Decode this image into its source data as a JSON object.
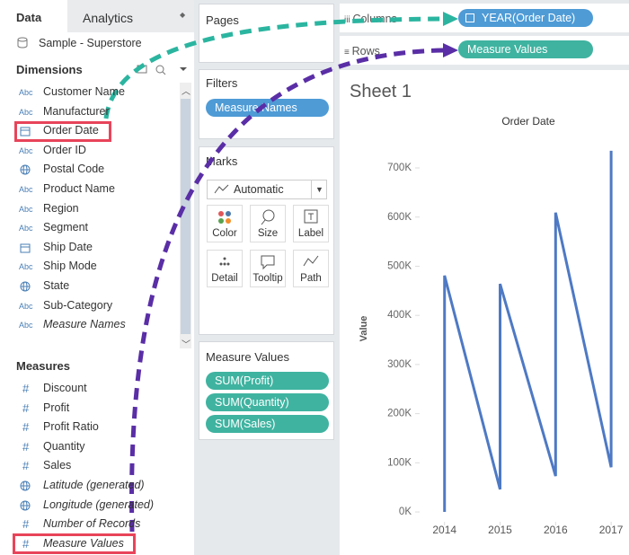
{
  "data_pane": {
    "tabs": [
      "Data",
      "Analytics"
    ],
    "data_source": "Sample - Superstore",
    "dimensions": {
      "title": "Dimensions",
      "items": [
        {
          "icon": "Abc",
          "name": "Customer Name"
        },
        {
          "icon": "Abc",
          "name": "Manufacturer"
        },
        {
          "name": "Order Date"
        },
        {
          "icon": "Abc",
          "name": "Order ID"
        },
        {
          "name": "Postal Code"
        },
        {
          "icon": "Abc",
          "name": "Product Name"
        },
        {
          "icon": "Abc",
          "name": "Region"
        },
        {
          "icon": "Abc",
          "name": "Segment"
        },
        {
          "name": "Ship Date"
        },
        {
          "icon": "Abc",
          "name": "Ship Mode"
        },
        {
          "name": "State"
        },
        {
          "icon": "Abc",
          "name": "Sub-Category"
        },
        {
          "icon": "Abc",
          "name": "Measure Names",
          "italic": true
        }
      ]
    },
    "measures": {
      "title": "Measures",
      "items": [
        {
          "icon": "#",
          "name": "Discount"
        },
        {
          "icon": "#",
          "name": "Profit"
        },
        {
          "icon": "#",
          "name": "Profit Ratio"
        },
        {
          "icon": "#",
          "name": "Quantity"
        },
        {
          "icon": "#",
          "name": "Sales"
        },
        {
          "name": "Latitude (generated)",
          "italic": true
        },
        {
          "name": "Longitude (generated)",
          "italic": true
        },
        {
          "icon": "#",
          "name": "Number of Records",
          "italic": true
        },
        {
          "icon": "#",
          "name": "Measure Values",
          "italic": true
        }
      ]
    }
  },
  "cards": {
    "pages": "Pages",
    "filters": {
      "title": "Filters",
      "pills": [
        "Measure Names"
      ]
    },
    "marks": {
      "title": "Marks",
      "mark_type": "Automatic",
      "buttons": [
        "Color",
        "Size",
        "Label",
        "Detail",
        "Tooltip",
        "Path"
      ]
    },
    "measure_values": {
      "title": "Measure Values",
      "pills": [
        "SUM(Profit)",
        "SUM(Quantity)",
        "SUM(Sales)"
      ]
    }
  },
  "shelves": {
    "columns": {
      "label": "Columns",
      "pill": "YEAR(Order Date)"
    },
    "rows": {
      "label": "Rows",
      "pill": "Measure Values"
    }
  },
  "sheet": {
    "title": "Sheet 1"
  },
  "chart_data": {
    "type": "line",
    "title": "Order Date",
    "y_label": "Value",
    "color": "#4e79c4",
    "x": [
      2014,
      2014,
      2015,
      2015,
      2016,
      2016,
      2017,
      2017
    ],
    "values": [
      0,
      481000,
      46000,
      464000,
      73000,
      609000,
      91000,
      735000
    ],
    "xlim": [
      2013.6,
      2017.16
    ],
    "xticks": [
      2014,
      2015,
      2016,
      2017
    ],
    "ylim": [
      -20000,
      770000
    ],
    "yticks": [
      {
        "value": 0,
        "label": "0K"
      },
      {
        "value": 100000,
        "label": "100K"
      },
      {
        "value": 200000,
        "label": "200K"
      },
      {
        "value": 300000,
        "label": "300K"
      },
      {
        "value": 400000,
        "label": "400K"
      },
      {
        "value": 500000,
        "label": "500K"
      },
      {
        "value": 600000,
        "label": "600K"
      },
      {
        "value": 700000,
        "label": "700K"
      }
    ]
  }
}
